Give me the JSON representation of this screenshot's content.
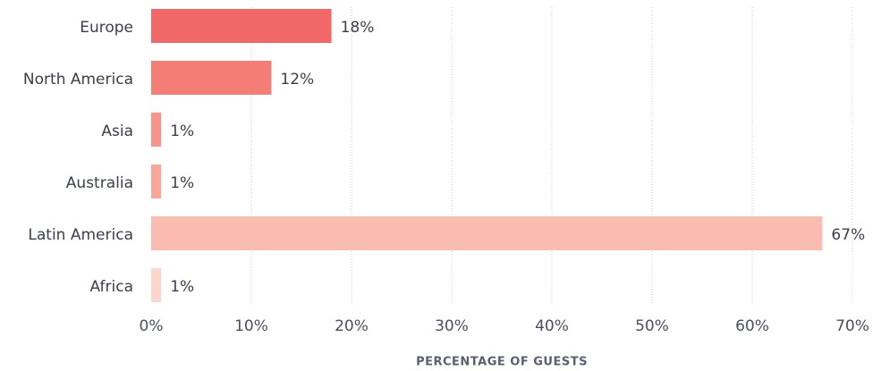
{
  "chart_data": {
    "type": "bar",
    "orientation": "horizontal",
    "categories": [
      "Europe",
      "North America",
      "Asia",
      "Australia",
      "Latin America",
      "Africa"
    ],
    "values": [
      18,
      12,
      1,
      1,
      67,
      1
    ],
    "value_labels": [
      "18%",
      "12%",
      "1%",
      "1%",
      "67%",
      "1%"
    ],
    "colors": [
      "#f26869",
      "#f47e76",
      "#f6958b",
      "#f8a89b",
      "#fabcb0",
      "#fcd6cc"
    ],
    "xlabel": "PERCENTAGE OF GUESTS",
    "xlim": [
      0,
      70
    ],
    "xticks": [
      {
        "value": 0,
        "label": "0%"
      },
      {
        "value": 10,
        "label": "10%"
      },
      {
        "value": 20,
        "label": "20%"
      },
      {
        "value": 30,
        "label": "30%"
      },
      {
        "value": 40,
        "label": "40%"
      },
      {
        "value": 50,
        "label": "50%"
      },
      {
        "value": 60,
        "label": "60%"
      },
      {
        "value": 70,
        "label": "70%"
      }
    ],
    "grid": true
  }
}
